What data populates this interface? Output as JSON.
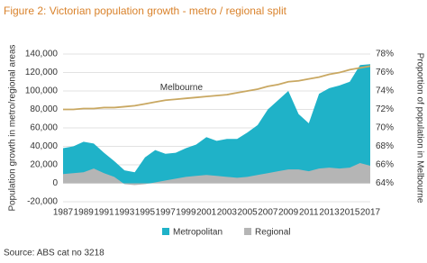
{
  "chart_data": {
    "type": "area",
    "title": "Figure 2: Victorian population growth - metro / regional split",
    "y_label": "Population growth in metro/regional areas",
    "y2_label": "Proportion of population in Melbourne",
    "source": "Source: ABS cat no 3218",
    "x": [
      1987,
      1988,
      1989,
      1990,
      1991,
      1992,
      1993,
      1994,
      1995,
      1996,
      1997,
      1998,
      1999,
      2000,
      2001,
      2002,
      2003,
      2004,
      2005,
      2006,
      2007,
      2008,
      2009,
      2010,
      2011,
      2012,
      2013,
      2014,
      2015,
      2016,
      2017
    ],
    "xlim": [
      1987,
      2017
    ],
    "xticks": [
      1987,
      1989,
      1991,
      1993,
      1995,
      1997,
      1999,
      2001,
      2003,
      2005,
      2007,
      2009,
      2011,
      2013,
      2015,
      2017
    ],
    "ylim": [
      -20000,
      140000
    ],
    "yticks": [
      {
        "value": -20000,
        "label": "-20,000"
      },
      0,
      {
        "value": 20000,
        "label": "20,000"
      },
      {
        "value": 40000,
        "label": "40,000"
      },
      {
        "value": 60000,
        "label": "60,000"
      },
      {
        "value": 80000,
        "label": "80,000"
      },
      {
        "value": 100000,
        "label": "100,000"
      },
      {
        "value": 120000,
        "label": "120,000"
      },
      {
        "value": 140000,
        "label": "140,000"
      }
    ],
    "y2lim": [
      62,
      78
    ],
    "y2ticks": [
      {
        "value": 64,
        "label": "64%"
      },
      {
        "value": 66,
        "label": "66%"
      },
      {
        "value": 68,
        "label": "68%"
      },
      {
        "value": 70,
        "label": "70%"
      },
      {
        "value": 72,
        "label": "72%"
      },
      {
        "value": 74,
        "label": "74%"
      },
      {
        "value": 76,
        "label": "76%"
      },
      {
        "value": 78,
        "label": "78%"
      }
    ],
    "grid": true,
    "legend": "bottom",
    "series": [
      {
        "name": "Metropolitan",
        "color": "#1fb2c8",
        "type": "area",
        "values": [
          38000,
          40000,
          45000,
          43000,
          33000,
          24000,
          14000,
          12000,
          28000,
          36000,
          32000,
          33000,
          38000,
          42000,
          50000,
          46000,
          48000,
          48000,
          55000,
          63000,
          80000,
          90000,
          100000,
          75000,
          65000,
          97000,
          103000,
          106000,
          110000,
          128000,
          129000
        ]
      },
      {
        "name": "Regional",
        "color": "#b5b5b5",
        "type": "area",
        "values": [
          10000,
          11000,
          12000,
          16000,
          11000,
          7000,
          -1000,
          -2000,
          -1000,
          1000,
          3000,
          5000,
          7000,
          8000,
          9000,
          8000,
          7000,
          6000,
          7000,
          9000,
          11000,
          13000,
          15000,
          15000,
          13000,
          16000,
          17000,
          16000,
          17000,
          22000,
          19000
        ]
      },
      {
        "name": "Melbourne",
        "color": "#c9a862",
        "type": "line",
        "axis": "y2",
        "values": [
          72.0,
          72.0,
          72.1,
          72.1,
          72.2,
          72.2,
          72.3,
          72.4,
          72.6,
          72.8,
          73.0,
          73.1,
          73.2,
          73.3,
          73.4,
          73.5,
          73.6,
          73.8,
          74.0,
          74.2,
          74.5,
          74.7,
          75.0,
          75.1,
          75.3,
          75.5,
          75.8,
          76.0,
          76.3,
          76.5,
          76.7
        ]
      }
    ]
  }
}
